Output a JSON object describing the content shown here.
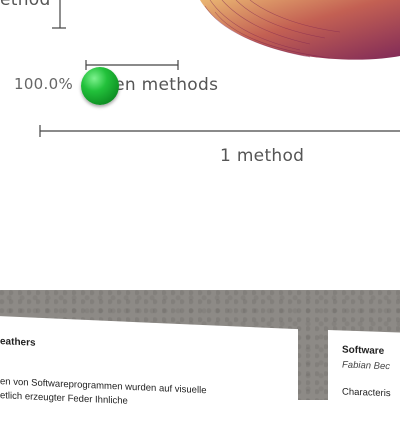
{
  "figure": {
    "label_method_top": "ethod",
    "label_percent": "100.0%",
    "label_hidden_methods": "den methods",
    "label_one_method": "1 method",
    "marker_color": "#22c13b",
    "fan_colors": [
      "#7a1f4f",
      "#c0584a",
      "#e9b26b"
    ]
  },
  "paper_left": {
    "title": "eathers",
    "line1": "en von Softwareprogrammen wurden auf visuelle",
    "line2": "etlich erzeugter Feder  Ihnliche"
  },
  "paper_right": {
    "title": "Software",
    "author": "Fabian Bec",
    "text": "Characteris"
  }
}
